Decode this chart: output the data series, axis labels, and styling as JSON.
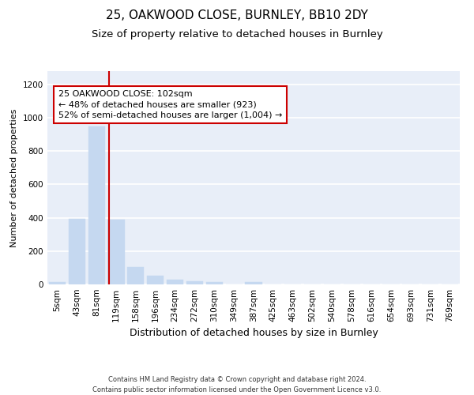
{
  "title1": "25, OAKWOOD CLOSE, BURNLEY, BB10 2DY",
  "title2": "Size of property relative to detached houses in Burnley",
  "xlabel": "Distribution of detached houses by size in Burnley",
  "ylabel": "Number of detached properties",
  "categories": [
    "5sqm",
    "43sqm",
    "81sqm",
    "119sqm",
    "158sqm",
    "196sqm",
    "234sqm",
    "272sqm",
    "310sqm",
    "349sqm",
    "387sqm",
    "425sqm",
    "463sqm",
    "502sqm",
    "540sqm",
    "578sqm",
    "616sqm",
    "654sqm",
    "693sqm",
    "731sqm",
    "769sqm"
  ],
  "values": [
    13,
    395,
    950,
    390,
    105,
    52,
    27,
    18,
    13,
    0,
    12,
    0,
    0,
    0,
    0,
    0,
    0,
    0,
    0,
    0,
    0
  ],
  "bar_color": "#c5d8f0",
  "bar_edgecolor": "#c5d8f0",
  "vline_color": "#cc0000",
  "vline_x": 2.62,
  "annotation_text": "25 OAKWOOD CLOSE: 102sqm\n← 48% of detached houses are smaller (923)\n52% of semi-detached houses are larger (1,004) →",
  "annotation_box_edgecolor": "#cc0000",
  "annotation_box_facecolor": "#ffffff",
  "ylim": [
    0,
    1280
  ],
  "yticks": [
    0,
    200,
    400,
    600,
    800,
    1000,
    1200
  ],
  "bg_color": "#e8eef8",
  "grid_color": "#ffffff",
  "footer": "Contains HM Land Registry data © Crown copyright and database right 2024.\nContains public sector information licensed under the Open Government Licence v3.0.",
  "title1_fontsize": 11,
  "title2_fontsize": 9.5,
  "xlabel_fontsize": 9,
  "ylabel_fontsize": 8,
  "tick_fontsize": 7.5,
  "annotation_fontsize": 8,
  "footer_fontsize": 6
}
